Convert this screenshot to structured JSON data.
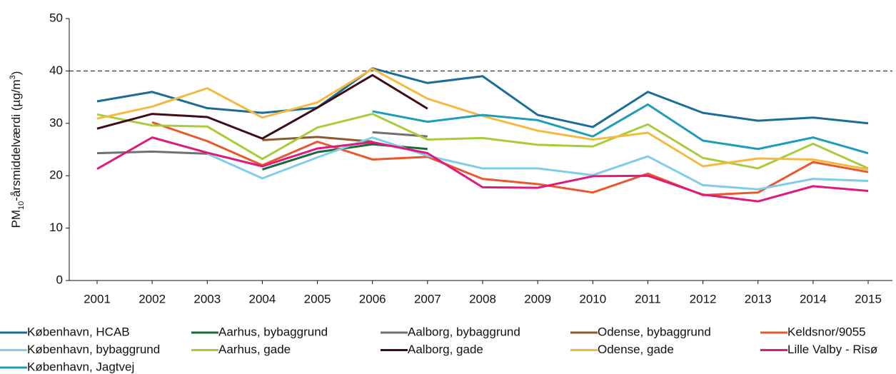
{
  "chart_data": {
    "type": "line",
    "ylabel": [
      "PM",
      "10",
      "-årsmiddelværdi (µg/m",
      "3",
      ")"
    ],
    "categories": [
      "2001",
      "2002",
      "2003",
      "2004",
      "2005",
      "2006",
      "2007",
      "2008",
      "2009",
      "2010",
      "2011",
      "2012",
      "2013",
      "2014",
      "2015"
    ],
    "ylim": [
      0,
      50
    ],
    "yticks": [
      0,
      10,
      20,
      30,
      40,
      50
    ],
    "hline": 40,
    "series": [
      {
        "name": "København, HCAB",
        "color": "#1b6d96",
        "values": [
          34.2,
          36,
          32.9,
          32,
          33,
          40.5,
          37.7,
          39,
          31.6,
          29.3,
          36,
          32,
          30.5,
          31.1,
          30
        ]
      },
      {
        "name": "Aarhus, bybaggrund",
        "color": "#1b6b3a",
        "values": [
          null,
          null,
          null,
          21.2,
          24.5,
          26,
          25.1,
          null,
          null,
          null,
          null,
          null,
          null,
          null,
          null
        ]
      },
      {
        "name": "Aalborg, bybaggrund",
        "color": "#707070",
        "values": [
          24.3,
          24.6,
          24.2,
          null,
          null,
          28.3,
          27.5,
          null,
          null,
          null,
          null,
          null,
          null,
          null,
          null
        ]
      },
      {
        "name": "Odense, bybaggrund",
        "color": "#8b5a2b",
        "values": [
          null,
          null,
          null,
          26.8,
          27.4,
          26.5,
          null,
          null,
          null,
          null,
          null,
          null,
          null,
          null,
          null
        ]
      },
      {
        "name": "Keldsnor/9055",
        "color": "#e8582a",
        "values": [
          null,
          30.2,
          26.6,
          22,
          26.5,
          23.1,
          23.6,
          19.4,
          18.4,
          16.8,
          20.4,
          16.3,
          16.8,
          22.6,
          20.7
        ]
      },
      {
        "name": "København, bybaggrund",
        "color": "#7fcde8",
        "values": [
          null,
          null,
          24.2,
          19.5,
          23.5,
          27.3,
          23.8,
          21.4,
          21.4,
          20.1,
          23.7,
          18.2,
          17.4,
          19.4,
          19
        ]
      },
      {
        "name": "Aarhus, gade",
        "color": "#a8cc3c",
        "values": [
          31.7,
          29.6,
          29.4,
          23.2,
          29.2,
          31.8,
          26.9,
          27.2,
          25.9,
          25.6,
          29.8,
          23.4,
          21.4,
          26.1,
          21.4
        ]
      },
      {
        "name": "Aalborg, gade",
        "color": "#3d0c14",
        "values": [
          29,
          31.8,
          31.2,
          27.1,
          33,
          39.2,
          32.8,
          null,
          null,
          null,
          null,
          null,
          null,
          null,
          null
        ]
      },
      {
        "name": "Odense, gade",
        "color": "#f5b942",
        "values": [
          30.9,
          33.2,
          36.7,
          31.1,
          34,
          40.4,
          34.7,
          31.4,
          28.6,
          26.9,
          28.2,
          21.8,
          23.3,
          23.1,
          21.2
        ]
      },
      {
        "name": "Lille Valby - Risø",
        "color": "#e0197d",
        "values": [
          21.3,
          27.3,
          24.4,
          21.8,
          25.2,
          26.4,
          24.3,
          17.8,
          17.7,
          19.9,
          20,
          16.4,
          15.1,
          18,
          17.1
        ]
      },
      {
        "name": "København, Jagtvej",
        "color": "#1e9cb8",
        "values": [
          null,
          null,
          null,
          null,
          null,
          32.3,
          30.3,
          31.6,
          30.6,
          27.5,
          33.6,
          26.7,
          25.1,
          27.3,
          24.3
        ]
      }
    ]
  }
}
